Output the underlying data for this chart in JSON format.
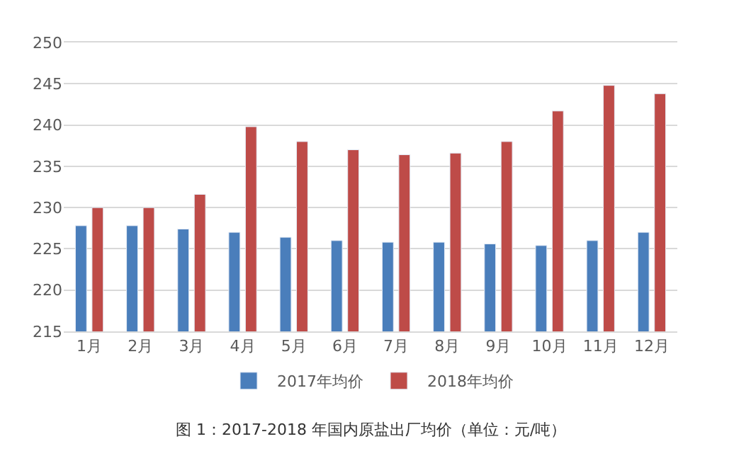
{
  "chart_data": {
    "type": "bar",
    "categories": [
      "1月",
      "2月",
      "3月",
      "4月",
      "5月",
      "6月",
      "7月",
      "8月",
      "9月",
      "10月",
      "11月",
      "12月"
    ],
    "series": [
      {
        "name": "2017年均价",
        "color": "#4a7ebb",
        "values": [
          227.8,
          227.8,
          227.4,
          227.0,
          226.4,
          226.0,
          225.8,
          225.8,
          225.6,
          225.4,
          226.0,
          227.0
        ]
      },
      {
        "name": "2018年均价",
        "color": "#be4b48",
        "values": [
          230.0,
          230.0,
          231.6,
          239.8,
          238.0,
          237.0,
          236.4,
          236.6,
          238.0,
          241.7,
          244.8,
          243.8
        ]
      }
    ],
    "ylim": [
      215,
      250
    ],
    "yticks": [
      215,
      220,
      225,
      230,
      235,
      240,
      245,
      250
    ],
    "grid": "y",
    "legend": "bottom",
    "annotations": [
      "图 1：2017-2018 年国内原盐出厂均价（单位：元/吨）"
    ]
  }
}
